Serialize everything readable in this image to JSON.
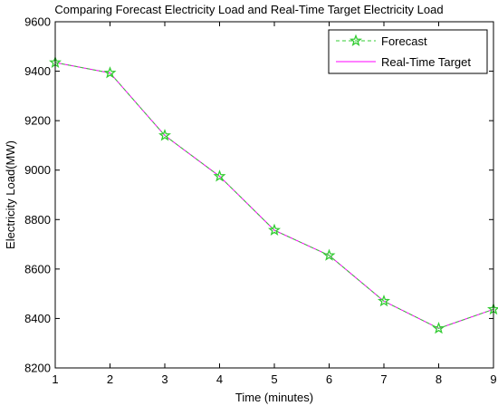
{
  "chart_data": {
    "type": "line",
    "title": "Comparing Forecast Electricity Load and Real-Time Target Electricity Load",
    "xlabel": "Time (minutes)",
    "ylabel": "Electricity Load(MW)",
    "x": [
      1,
      2,
      3,
      4,
      5,
      6,
      7,
      8,
      9
    ],
    "xlim": [
      1,
      9
    ],
    "ylim": [
      8200,
      9600
    ],
    "x_ticks": [
      "1",
      "2",
      "3",
      "4",
      "5",
      "6",
      "7",
      "8",
      "9"
    ],
    "y_ticks": [
      "8200",
      "8400",
      "8600",
      "8800",
      "9000",
      "9200",
      "9400",
      "9600"
    ],
    "grid": false,
    "legend_position": "top-right",
    "series": [
      {
        "name": "Forecast",
        "values": [
          9435,
          9393,
          9140,
          8975,
          8757,
          8655,
          8470,
          8360,
          8437
        ],
        "color": "#33cc33",
        "line_style": "dashed",
        "marker": "pentagram"
      },
      {
        "name": "Real-Time Target",
        "values": [
          9435,
          9393,
          9140,
          8975,
          8757,
          8655,
          8470,
          8360,
          8437
        ],
        "color": "#ff00ff",
        "line_style": "solid",
        "marker": "none"
      }
    ]
  }
}
